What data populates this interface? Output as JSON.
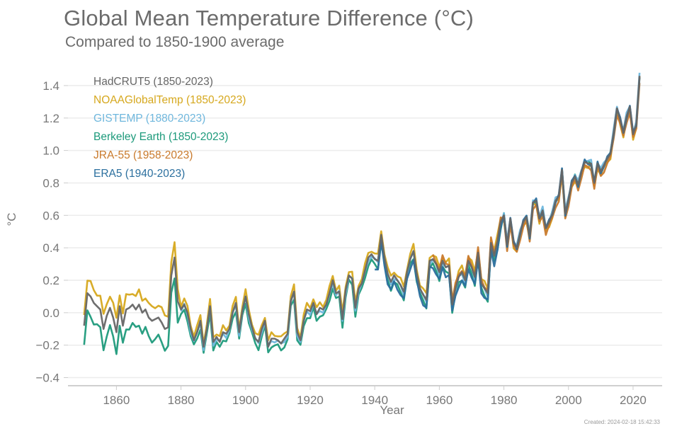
{
  "header": {
    "title": "Global Mean Temperature Difference (°C)",
    "subtitle": "Compared to 1850-1900 average"
  },
  "footer": {
    "created": "Created: 2024-02-18 15:42:33"
  },
  "chart_data": {
    "type": "line",
    "title": "Global Mean Temperature Difference (°C)",
    "subtitle": "Compared to 1850-1900 average",
    "xlabel": "Year",
    "ylabel": "°C",
    "xlim": [
      1845,
      2029
    ],
    "ylim": [
      -0.45,
      1.5
    ],
    "x_ticks": [
      1860,
      1880,
      1900,
      1920,
      1940,
      1960,
      1980,
      2000,
      2020
    ],
    "y_ticks": [
      -0.4,
      -0.2,
      0.0,
      0.2,
      0.4,
      0.6,
      0.8,
      1.0,
      1.2,
      1.4
    ],
    "y_tick_labels": [
      "−0.4",
      "−0.2",
      "0.0",
      "0.2",
      "0.4",
      "0.6",
      "0.8",
      "1.0",
      "1.2",
      "1.4"
    ],
    "grid": "horizontal",
    "legend_position": "top-left",
    "base_series": {
      "x_start": 1850,
      "values": [
        -0.08,
        0.12,
        0.1,
        0.06,
        0.04,
        0.02,
        -0.1,
        -0.02,
        0.03,
        -0.03,
        -0.12,
        0.04,
        -0.08,
        0.02,
        0.03,
        0.05,
        0.02,
        0.05,
        0.0,
        0.02,
        -0.03,
        -0.05,
        -0.04,
        -0.03,
        -0.06,
        -0.1,
        -0.09,
        0.23,
        0.34,
        0.07,
        0.02,
        0.05,
        0.0,
        -0.1,
        -0.17,
        -0.12,
        -0.05,
        -0.21,
        -0.1,
        0.04,
        -0.18,
        -0.15,
        -0.18,
        -0.12,
        -0.13,
        -0.1,
        0.0,
        0.06,
        -0.12,
        0.01,
        0.1,
        -0.01,
        -0.09,
        -0.16,
        -0.18,
        -0.1,
        -0.05,
        -0.21,
        -0.16,
        -0.16,
        -0.17,
        -0.19,
        -0.16,
        -0.13,
        0.07,
        0.13,
        -0.12,
        -0.17,
        -0.05,
        0.02,
        0.01,
        0.06,
        -0.01,
        0.03,
        0.02,
        0.05,
        0.12,
        0.2,
        0.12,
        0.13,
        -0.04,
        0.14,
        0.23,
        0.21,
        0.03,
        0.15,
        0.18,
        0.26,
        0.34,
        0.36,
        0.33,
        0.32,
        0.48,
        0.34,
        0.24,
        0.19,
        0.23,
        0.2,
        0.17,
        0.13,
        0.25,
        0.33,
        0.38,
        0.24,
        0.15,
        0.11,
        0.08,
        0.32,
        0.33,
        0.3,
        0.25,
        0.32,
        0.28,
        0.29,
        0.05,
        0.15,
        0.22,
        0.25,
        0.2,
        0.32,
        0.28,
        0.22,
        0.37,
        0.18,
        0.15,
        0.12,
        0.43,
        0.35,
        0.44,
        0.56,
        0.6,
        0.42,
        0.58,
        0.43,
        0.4,
        0.49,
        0.56,
        0.59,
        0.47,
        0.68,
        0.69,
        0.58,
        0.63,
        0.52,
        0.56,
        0.61,
        0.69,
        0.72,
        0.88,
        0.61,
        0.7,
        0.8,
        0.84,
        0.79,
        0.87,
        0.93,
        0.92,
        0.92,
        0.8,
        0.92,
        0.87,
        0.91,
        0.95,
        0.98,
        1.11,
        1.26,
        1.19,
        1.11,
        1.21,
        1.27,
        1.1,
        1.16,
        1.46
      ]
    },
    "series": [
      {
        "name": "HadCRUT5 (1850-2023)",
        "color": "#666666",
        "start": 1850,
        "end": 2023,
        "offsets": {
          "early": 0.0,
          "mid": 0.0,
          "late": 0.0
        }
      },
      {
        "name": "NOAAGlobalTemp (1850-2023)",
        "color": "#d6a81e",
        "start": 1850,
        "end": 2023,
        "offsets": {
          "early": 0.08,
          "mid": 0.03,
          "late": -0.02
        }
      },
      {
        "name": "GISTEMP (1880-2023)",
        "color": "#6fb7dd",
        "start": 1880,
        "end": 2023,
        "offsets": {
          "early": 0.03,
          "mid": -0.01,
          "late": 0.01
        }
      },
      {
        "name": "Berkeley Earth (1850-2023)",
        "color": "#1d9a7b",
        "start": 1850,
        "end": 2023,
        "offsets": {
          "early": -0.12,
          "mid": -0.04,
          "late": 0.0
        }
      },
      {
        "name": "JRA-55 (1958-2023)",
        "color": "#c97a2c",
        "start": 1958,
        "end": 2023,
        "offsets": {
          "early": 0.0,
          "mid": 0.02,
          "late": -0.03
        }
      },
      {
        "name": "ERA5 (1940-2023)",
        "color": "#2b6f9e",
        "start": 1940,
        "end": 2023,
        "offsets": {
          "early": 0.0,
          "mid": -0.05,
          "late": 0.0
        }
      }
    ]
  }
}
